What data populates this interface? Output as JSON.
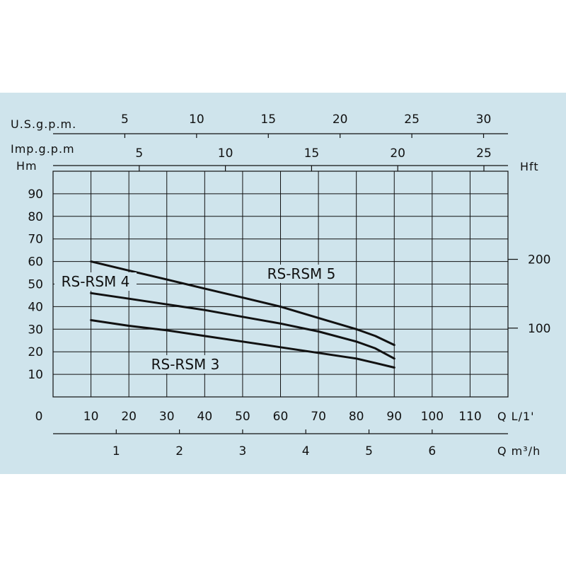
{
  "chart_data": {
    "type": "line",
    "title": "",
    "grid": true,
    "colors": {
      "background": "#cfe4ec",
      "line": "#111111",
      "text": "#111111"
    },
    "xlabel_bottom": "Q L/1'",
    "xlim": [
      0,
      120
    ],
    "x_ticks": [
      0,
      10,
      20,
      30,
      40,
      50,
      60,
      70,
      80,
      90,
      100,
      110
    ],
    "ylabel_left": "Hm",
    "ylim": [
      0,
      100
    ],
    "y_ticks": [
      10,
      20,
      30,
      40,
      50,
      60,
      70,
      80,
      90
    ],
    "ylabel_right": "Hft",
    "y_right_ticks": [
      100,
      200
    ],
    "secondary_axes": {
      "us_gpm": {
        "label": "U.S.g.p.m.",
        "ticks": [
          5,
          10,
          15,
          20,
          25,
          30
        ]
      },
      "imp_gpm": {
        "label": "Imp.g.p.m",
        "ticks": [
          5,
          10,
          15,
          20,
          25
        ]
      },
      "m3h": {
        "label": "Q m³/h",
        "ticks": [
          1,
          2,
          3,
          4,
          5,
          6
        ]
      }
    },
    "series": [
      {
        "name": "RS-RSM 5",
        "x": [
          10,
          20,
          30,
          40,
          50,
          60,
          70,
          80,
          85,
          90
        ],
        "y": [
          60,
          56,
          52,
          48,
          44,
          40,
          35,
          30,
          27,
          23
        ]
      },
      {
        "name": "RS-RSM 4",
        "x": [
          10,
          20,
          30,
          40,
          50,
          60,
          70,
          80,
          85,
          90
        ],
        "y": [
          46,
          43.5,
          41,
          38.5,
          35.5,
          32.5,
          29,
          24.5,
          21.5,
          17
        ]
      },
      {
        "name": "RS-RSM 3",
        "x": [
          10,
          20,
          30,
          40,
          50,
          60,
          70,
          80,
          85,
          90
        ],
        "y": [
          34,
          31.5,
          29.5,
          27,
          24.5,
          22,
          19.5,
          17,
          15,
          13
        ]
      }
    ]
  }
}
